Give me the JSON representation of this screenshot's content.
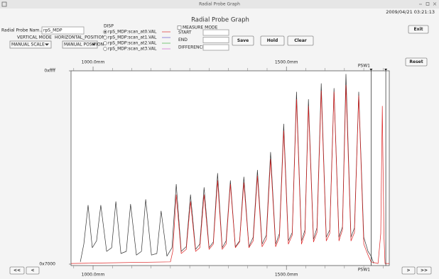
{
  "window": {
    "title": "Radial Probe Graph"
  },
  "header": {
    "title": "Radial Probe Graph",
    "timestamp": "2009/04/21 03:21:13"
  },
  "controls": {
    "probe_name_label": "Radial Probe Nam...",
    "probe_name_value": "rpS_MDP",
    "vertical_mode_label": "VERTICAL MODE",
    "vertical_mode_value": "MANUAL SCALE",
    "horizontal_position_label": "HORIZONTAL_POSITION",
    "horizontal_position_value": "MANUAL POSITION"
  },
  "disp": {
    "label": "DISP",
    "items": [
      {
        "label": "rpS_MDP:scan_at0.VAL",
        "color": "#e04848",
        "selected": true
      },
      {
        "label": "rpS_MDP:scan_at1.VAL",
        "color": "#7a6fd0",
        "selected": false
      },
      {
        "label": "rpS_MDP:scan_at2.VAL",
        "color": "#5fbf5f",
        "selected": false
      },
      {
        "label": "rpS_MDP:scan_at3.VAL",
        "color": "#d478d4",
        "selected": false
      }
    ]
  },
  "measure": {
    "label": "MEASURE MODE",
    "checked": false,
    "fields": [
      "START",
      "END",
      "DIFFERENCE"
    ]
  },
  "buttons": {
    "save": "Save",
    "hold": "Hold",
    "clear": "Clear",
    "exit": "Exit",
    "reset": "Reset",
    "first": "<<",
    "prev": "<",
    "next": ">",
    "last": ">>"
  },
  "chart_data": {
    "type": "line",
    "xlim": [
      943,
      1766
    ],
    "ylim": [
      28672,
      65535
    ],
    "xticks": [
      {
        "value": 1000,
        "label": "1000.0mm"
      },
      {
        "value": 1500,
        "label": "1500.0mm"
      }
    ],
    "xminorticks": [
      950,
      1050,
      1100,
      1150,
      1200,
      1250,
      1300,
      1350,
      1400,
      1450,
      1550,
      1600,
      1650,
      1700,
      1750
    ],
    "yticks": [
      {
        "value": 65535,
        "label": "0xffff"
      },
      {
        "value": 28672,
        "label": "0x7000"
      }
    ],
    "cursors": [
      {
        "label": "PSW1",
        "x": 1719
      },
      {
        "x": 1757
      }
    ],
    "series": [
      {
        "color": "#333333",
        "x": [
          967,
          976,
          987,
          998,
          1009,
          1020,
          1035,
          1048,
          1059,
          1072,
          1086,
          1097,
          1112,
          1125,
          1136,
          1151,
          1165,
          1176,
          1191,
          1204,
          1215,
          1228,
          1241,
          1252,
          1265,
          1276,
          1287,
          1300,
          1311,
          1322,
          1334,
          1344,
          1355,
          1368,
          1379,
          1390,
          1403,
          1414,
          1425,
          1437,
          1448,
          1459,
          1472,
          1482,
          1493,
          1505,
          1515,
          1526,
          1539,
          1548,
          1557,
          1570,
          1579,
          1590,
          1603,
          1612,
          1623,
          1636,
          1645,
          1654,
          1667,
          1676,
          1687,
          1700,
          1711,
          1719,
          1726
        ],
        "values": [
          29100,
          32500,
          39900,
          31800,
          33100,
          39900,
          31100,
          31800,
          40600,
          30700,
          31100,
          40100,
          30400,
          31100,
          41000,
          30400,
          30700,
          38800,
          30200,
          31800,
          43900,
          31100,
          32000,
          41900,
          31500,
          32500,
          43300,
          31800,
          32900,
          46000,
          31800,
          33100,
          44600,
          32000,
          33100,
          45300,
          32000,
          33800,
          46600,
          32500,
          34200,
          50000,
          32500,
          34500,
          55400,
          33100,
          34700,
          61500,
          33100,
          35200,
          60100,
          33400,
          35600,
          63100,
          33800,
          35200,
          62200,
          33800,
          35800,
          64900,
          33800,
          35600,
          61500,
          33800,
          31100,
          30200,
          28800
        ]
      },
      {
        "color": "#dd2222",
        "x": [
          943,
          1200,
          1206,
          1215,
          1228,
          1241,
          1252,
          1265,
          1276,
          1287,
          1300,
          1311,
          1322,
          1334,
          1344,
          1355,
          1368,
          1379,
          1390,
          1403,
          1414,
          1425,
          1437,
          1448,
          1459,
          1472,
          1482,
          1493,
          1505,
          1515,
          1526,
          1539,
          1548,
          1557,
          1570,
          1579,
          1590,
          1603,
          1612,
          1623,
          1636,
          1645,
          1654,
          1667,
          1676,
          1687,
          1700,
          1711,
          1719,
          1737,
          1744,
          1748,
          1752,
          1755,
          1766
        ],
        "values": [
          28800,
          29100,
          31100,
          41900,
          30700,
          31500,
          40600,
          31100,
          31800,
          41900,
          31500,
          32500,
          44600,
          31500,
          32500,
          43900,
          31800,
          32900,
          44200,
          31800,
          33100,
          45500,
          32000,
          33400,
          48700,
          32000,
          33800,
          54100,
          32500,
          34200,
          60100,
          32500,
          34500,
          58800,
          32900,
          34700,
          61700,
          33100,
          34500,
          61500,
          33100,
          35200,
          62800,
          33100,
          34700,
          60800,
          32500,
          30400,
          29100,
          28800,
          34500,
          58800,
          34500,
          28800,
          28800
        ]
      }
    ]
  }
}
